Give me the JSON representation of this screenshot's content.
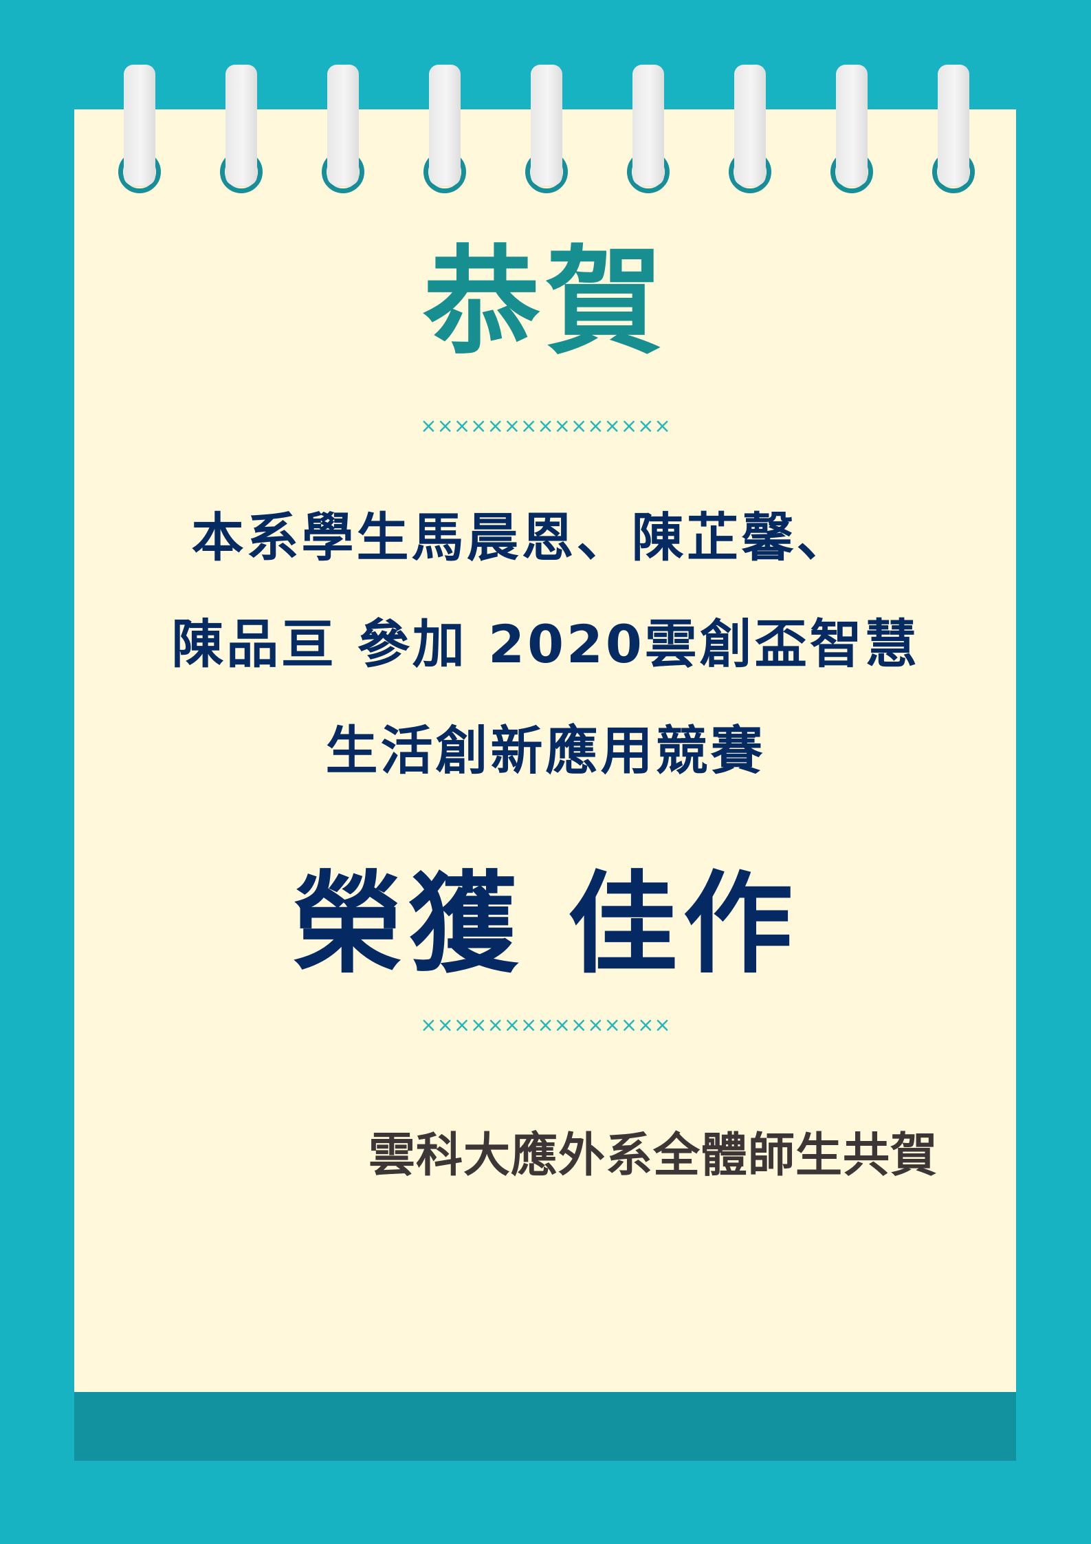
{
  "title": "恭賀",
  "divider": "×××××××××××××××",
  "message": {
    "line1": "本系學生馬晨恩、陳芷馨、",
    "line2": "陳品亘 參加 2020雲創盃智慧",
    "line3": "生活創新應用競賽"
  },
  "award": "榮獲 佳作",
  "signature": "雲科大應外系全體師生共賀",
  "colors": {
    "background": "#17b3c3",
    "paper": "#fff8da",
    "accent": "#178f91",
    "text": "#062b63",
    "signature": "#3c3636"
  }
}
